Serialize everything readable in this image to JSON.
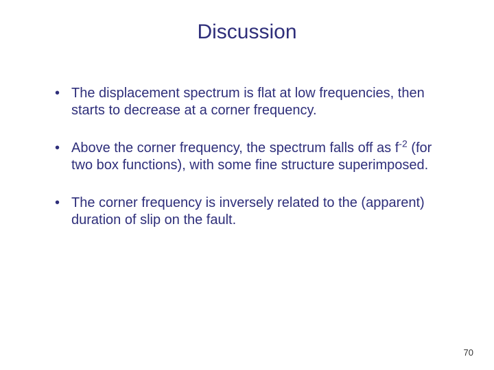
{
  "title": "Discussion",
  "bullets": [
    {
      "pre": "The displacement spectrum is flat at low frequencies, then starts to decrease at a corner frequency.",
      "sup": "",
      "post": ""
    },
    {
      "pre": "Above the corner frequency, the spectrum falls off as f",
      "sup": "-2",
      "post": " (for two box functions), with some fine structure superimposed."
    },
    {
      "pre": "The corner frequency is inversely related to the (apparent) duration of slip on the fault.",
      "sup": "",
      "post": ""
    }
  ],
  "page_number": "70",
  "colors": {
    "text": "#2e2e7a",
    "background": "#ffffff",
    "page_num": "#333333"
  },
  "fonts": {
    "title_size": 30,
    "body_size": 20,
    "page_num_size": 13
  }
}
